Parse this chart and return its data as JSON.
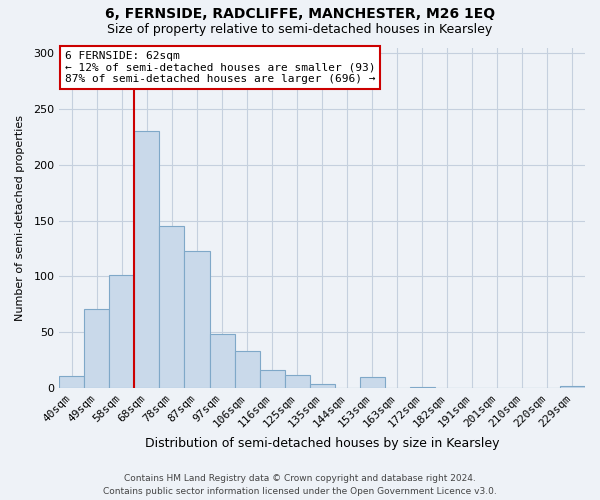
{
  "title": "6, FERNSIDE, RADCLIFFE, MANCHESTER, M26 1EQ",
  "subtitle": "Size of property relative to semi-detached houses in Kearsley",
  "xlabel": "Distribution of semi-detached houses by size in Kearsley",
  "ylabel": "Number of semi-detached properties",
  "categories": [
    "40sqm",
    "49sqm",
    "58sqm",
    "68sqm",
    "78sqm",
    "87sqm",
    "97sqm",
    "106sqm",
    "116sqm",
    "125sqm",
    "135sqm",
    "144sqm",
    "153sqm",
    "163sqm",
    "172sqm",
    "182sqm",
    "191sqm",
    "201sqm",
    "210sqm",
    "220sqm",
    "229sqm"
  ],
  "values": [
    11,
    71,
    101,
    230,
    145,
    123,
    48,
    33,
    16,
    12,
    4,
    0,
    10,
    0,
    1,
    0,
    0,
    0,
    0,
    0,
    2
  ],
  "bar_color": "#c9d9ea",
  "bar_edge_color": "#7fa8c8",
  "property_line_color": "#cc0000",
  "property_bar_index": 2,
  "annotation_line1": "6 FERNSIDE: 62sqm",
  "annotation_line2": "← 12% of semi-detached houses are smaller (93)",
  "annotation_line3": "87% of semi-detached houses are larger (696) →",
  "annotation_box_color": "#ffffff",
  "annotation_box_edge_color": "#cc0000",
  "ylim": [
    0,
    305
  ],
  "yticks": [
    0,
    50,
    100,
    150,
    200,
    250,
    300
  ],
  "footer": "Contains HM Land Registry data © Crown copyright and database right 2024.\nContains public sector information licensed under the Open Government Licence v3.0.",
  "bg_color": "#eef2f7",
  "plot_bg_color": "#eef2f7",
  "grid_color": "#c5d0de",
  "title_fontsize": 10,
  "subtitle_fontsize": 9,
  "xlabel_fontsize": 9,
  "ylabel_fontsize": 8,
  "tick_fontsize": 8,
  "footer_fontsize": 6.5
}
